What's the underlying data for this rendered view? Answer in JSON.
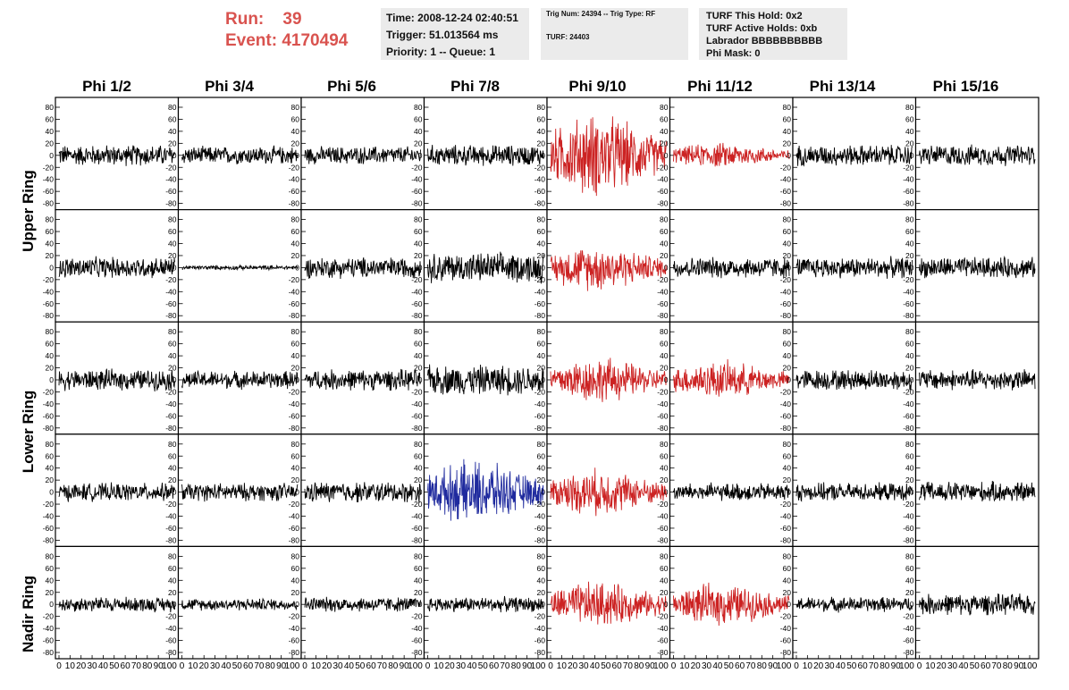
{
  "run": {
    "run_label": "Run:",
    "run_value": "39",
    "event_label": "Event:",
    "event_value": "4170494"
  },
  "time_panel": {
    "time": "Time: 2008-12-24 02:40:51",
    "trigger": "Trigger: 51.013564 ms",
    "priority": "Priority: 1 -- Queue: 1"
  },
  "trig_panel": {
    "trig": "Trig Num: 24394 -- Trig Type: RF",
    "turf": "TURF: 24403"
  },
  "turf_panel": {
    "hold": "TURF This Hold: 0x2",
    "active": "TURF Active Holds: 0xb",
    "labrador": "Labrador BBBBBBBBBB",
    "phi_mask": "Phi Mask: 0"
  },
  "columns": [
    "Phi 1/2",
    "Phi 3/4",
    "Phi 5/6",
    "Phi 7/8",
    "Phi 9/10",
    "Phi 11/12",
    "Phi 13/14",
    "Phi 15/16"
  ],
  "row_labels": [
    "Upper Ring",
    "Lower Ring",
    "Nadir Ring"
  ],
  "y_ticks": [
    80,
    60,
    40,
    20,
    0,
    -20,
    -40,
    -60,
    -80
  ],
  "x_ticks": [
    0,
    10,
    20,
    30,
    40,
    50,
    60,
    70,
    80,
    90,
    100
  ],
  "x_tick_labels": [
    "0",
    "10",
    "20",
    "30",
    "40",
    "50",
    "60",
    "70",
    "80",
    "90",
    "100"
  ],
  "colors": {
    "default": "#000000",
    "red": "#cc2222",
    "blue": "#1f2a9e",
    "accent": "#d9534f"
  },
  "trace_colors": [
    [
      "default",
      "default",
      "default",
      "default",
      "red",
      "red",
      "default",
      "default"
    ],
    [
      "default",
      "default",
      "default",
      "default",
      "red",
      "default",
      "default",
      "default"
    ],
    [
      "default",
      "default",
      "default",
      "default",
      "red",
      "red",
      "default",
      "default"
    ],
    [
      "default",
      "default",
      "default",
      "blue",
      "red",
      "default",
      "default",
      "default"
    ],
    [
      "default",
      "default",
      "default",
      "default",
      "red",
      "red",
      "default",
      "default"
    ]
  ],
  "trace_amplitudes": [
    [
      14,
      12,
      12,
      14,
      40,
      12,
      14,
      14
    ],
    [
      14,
      3,
      14,
      20,
      22,
      14,
      14,
      14
    ],
    [
      14,
      12,
      14,
      20,
      22,
      18,
      14,
      14
    ],
    [
      12,
      12,
      14,
      30,
      22,
      12,
      12,
      14
    ],
    [
      10,
      8,
      10,
      10,
      22,
      20,
      10,
      14
    ]
  ]
}
